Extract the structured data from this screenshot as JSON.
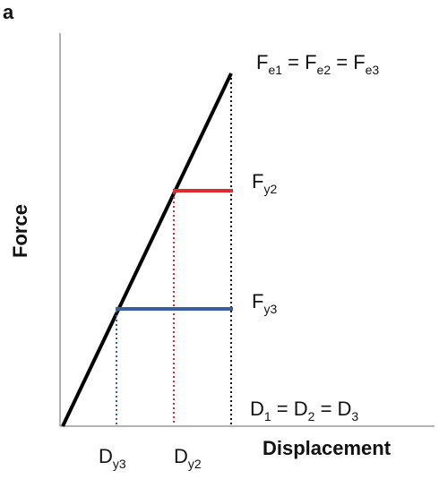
{
  "panel_label": "a",
  "axes": {
    "y_label": "Force",
    "x_label": "Displacement"
  },
  "annotations": {
    "fe_main": "F",
    "fe_sub1": "e1",
    "fe_eq1": " = F",
    "fe_sub2": "e2",
    "fe_eq2": " = F",
    "fe_sub3": "e3",
    "fy2_main": "F",
    "fy2_sub": "y2",
    "fy3_main": "F",
    "fy3_sub": "y3",
    "d_main1": "D",
    "d_sub1": "1",
    "d_eq1": " = D",
    "d_sub2": "2",
    "d_eq2": " = D",
    "d_sub3": "3",
    "dy3_main": "D",
    "dy3_sub": "y3",
    "dy2_main": "D",
    "dy2_sub": "y2"
  },
  "colors": {
    "curve": "#000000",
    "axis": "#999999",
    "level_2": "#e02b2b",
    "level_3": "#3a5f9e",
    "ultimate_guide": "#111111"
  }
}
